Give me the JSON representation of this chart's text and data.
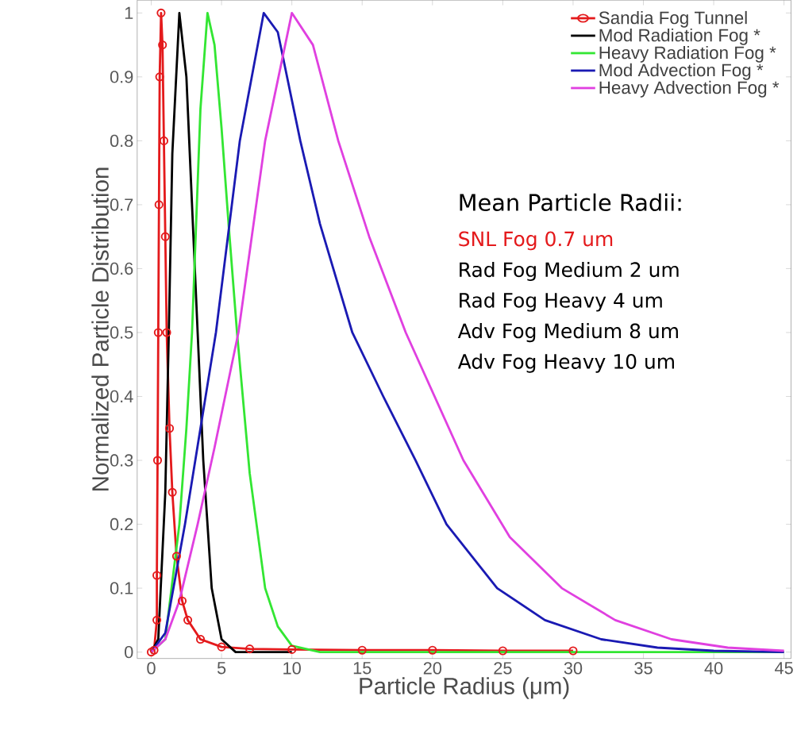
{
  "chart_data": {
    "type": "line",
    "xlabel": "Particle Radius (μm)",
    "ylabel": "Normalized Particle Distribution",
    "xlim": [
      -1,
      45.5
    ],
    "ylim": [
      -0.01,
      1.02
    ],
    "xticks": [
      0,
      5,
      10,
      15,
      20,
      25,
      30,
      35,
      40,
      45
    ],
    "yticks": [
      0,
      0.1,
      0.2,
      0.3,
      0.4,
      0.5,
      0.6,
      0.7,
      0.8,
      0.9,
      1
    ],
    "grid": false,
    "legend": "top right",
    "line_style": "solid",
    "series": [
      {
        "name": "Sandia Fog Tunnel",
        "color": "#e41a1c",
        "marker": "circle",
        "x": [
          0,
          0.2,
          0.4,
          0.4,
          0.45,
          0.5,
          0.55,
          0.6,
          0.7,
          0.8,
          0.9,
          1,
          1.1,
          1.3,
          1.5,
          1.8,
          2.2,
          2.6,
          3.5,
          5,
          7,
          10,
          15,
          20,
          25,
          30
        ],
        "values": [
          0,
          0.003,
          0.05,
          0.12,
          0.3,
          0.5,
          0.7,
          0.9,
          1,
          0.95,
          0.8,
          0.65,
          0.5,
          0.35,
          0.25,
          0.15,
          0.08,
          0.05,
          0.02,
          0.008,
          0.005,
          0.004,
          0.003,
          0.003,
          0.002,
          0.002
        ]
      },
      {
        "name": "Mod Radiation Fog *",
        "color": "#000000",
        "marker": "none",
        "x": [
          0,
          0.5,
          1,
          1.25,
          1.5,
          2,
          2.5,
          3,
          3.3,
          3.7,
          4.3,
          5,
          6,
          10
        ],
        "values": [
          0,
          0.02,
          0.25,
          0.5,
          0.78,
          1,
          0.9,
          0.65,
          0.5,
          0.3,
          0.1,
          0.02,
          0,
          0
        ]
      },
      {
        "name": "Heavy Radiation Fog *",
        "color": "#33e633",
        "marker": "none",
        "x": [
          0,
          1,
          2,
          2.5,
          2.9,
          3.5,
          4,
          4.5,
          5,
          5.5,
          6.1,
          7,
          8.1,
          9,
          10,
          12,
          45
        ],
        "values": [
          0,
          0.02,
          0.2,
          0.35,
          0.5,
          0.85,
          1,
          0.95,
          0.82,
          0.67,
          0.5,
          0.28,
          0.1,
          0.04,
          0.01,
          0,
          0
        ]
      },
      {
        "name": "Mod Advection Fog *",
        "color": "#1a1ab3",
        "marker": "none",
        "x": [
          0,
          1,
          2.4,
          3.5,
          4.6,
          6.3,
          8,
          9,
          10.6,
          12,
          14.3,
          16.5,
          18.8,
          21,
          24.6,
          28,
          32,
          36,
          40,
          45
        ],
        "values": [
          0,
          0.03,
          0.2,
          0.35,
          0.5,
          0.8,
          1,
          0.97,
          0.8,
          0.67,
          0.5,
          0.4,
          0.3,
          0.2,
          0.1,
          0.05,
          0.02,
          0.007,
          0.002,
          0
        ]
      },
      {
        "name": "Heavy Advection Fog *",
        "color": "#e040e0",
        "marker": "none",
        "x": [
          0,
          1,
          2,
          3.3,
          4.5,
          6.2,
          8.1,
          10,
          11.5,
          13.3,
          15.5,
          18.1,
          22.2,
          25.5,
          29.2,
          33,
          37,
          41,
          45
        ],
        "values": [
          0,
          0.02,
          0.08,
          0.2,
          0.32,
          0.5,
          0.8,
          1,
          0.95,
          0.8,
          0.65,
          0.5,
          0.3,
          0.18,
          0.1,
          0.05,
          0.02,
          0.007,
          0.002
        ]
      }
    ],
    "annotations": [
      "Mean Particle Radii:",
      "SNL Fog 0.7 um",
      "Rad Fog Medium 2 um",
      "Rad Fog Heavy 4 um",
      "Adv Fog Medium 8 um",
      "Adv Fog Heavy 10 um"
    ]
  }
}
